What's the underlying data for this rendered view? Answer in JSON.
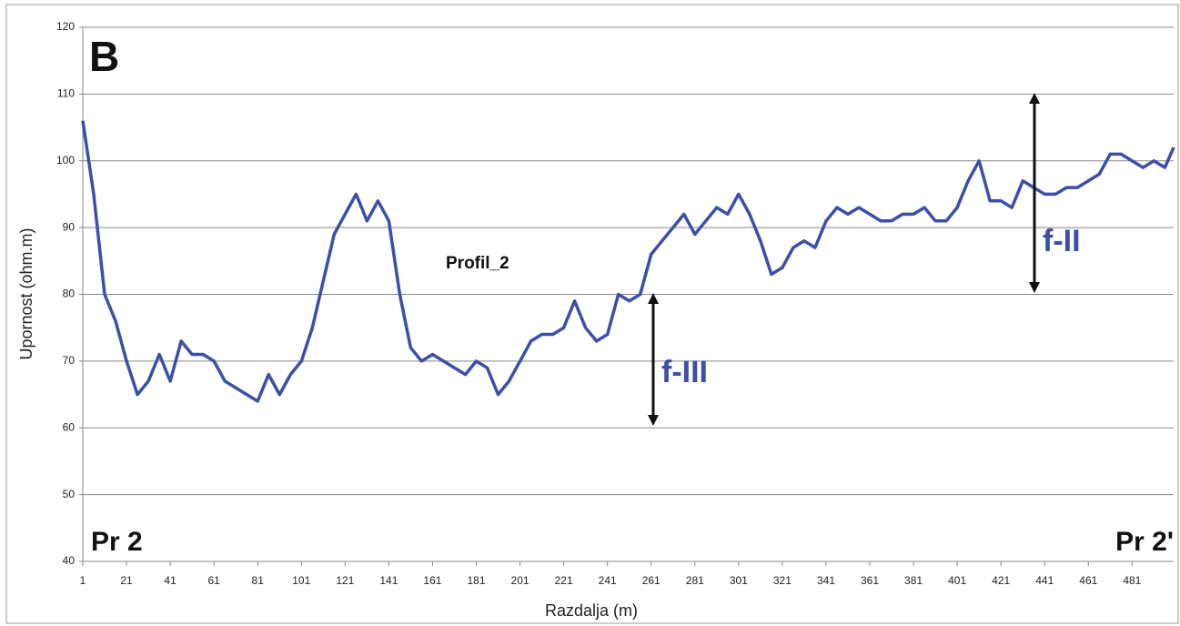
{
  "chart_data": {
    "type": "line",
    "x_label": "Razdalja (m)",
    "y_label": "Upornost (ohm.m)",
    "panel_label": "B",
    "start_label": "Pr 2",
    "end_label": "Pr 2'",
    "annotations": [
      "Profil_2",
      "f-III",
      "f-II"
    ],
    "x": [
      1,
      6,
      11,
      16,
      21,
      26,
      31,
      36,
      41,
      46,
      51,
      56,
      61,
      66,
      71,
      76,
      81,
      86,
      91,
      96,
      101,
      106,
      111,
      116,
      121,
      126,
      131,
      136,
      141,
      146,
      151,
      156,
      161,
      166,
      171,
      176,
      181,
      186,
      191,
      196,
      201,
      206,
      211,
      216,
      221,
      226,
      231,
      236,
      241,
      246,
      251,
      256,
      261,
      266,
      271,
      276,
      281,
      286,
      291,
      296,
      301,
      306,
      311,
      316,
      321,
      326,
      331,
      336,
      341,
      346,
      351,
      356,
      361,
      366,
      371,
      376,
      381,
      386,
      391,
      396,
      401,
      406,
      411,
      416,
      421,
      426,
      431,
      436,
      441,
      446,
      451,
      456,
      461,
      466,
      471,
      476,
      481,
      486,
      491,
      496,
      500
    ],
    "values": [
      106,
      95,
      80,
      76,
      70,
      65,
      67,
      71,
      67,
      73,
      71,
      71,
      70,
      67,
      66,
      65,
      64,
      68,
      65,
      68,
      70,
      75,
      82,
      89,
      92,
      95,
      91,
      94,
      91,
      80,
      72,
      70,
      71,
      70,
      69,
      68,
      70,
      69,
      65,
      67,
      70,
      73,
      74,
      74,
      75,
      79,
      75,
      73,
      74,
      80,
      79,
      80,
      86,
      88,
      90,
      92,
      89,
      91,
      93,
      92,
      95,
      92,
      88,
      83,
      84,
      87,
      88,
      87,
      91,
      93,
      92,
      93,
      92,
      91,
      91,
      92,
      92,
      93,
      91,
      91,
      93,
      97,
      100,
      94,
      94,
      93,
      97,
      96,
      95,
      95,
      96,
      96,
      97,
      98,
      101,
      101,
      100,
      99,
      100,
      99,
      102
    ],
    "color": "#3c4fa8",
    "xlim": [
      1,
      500
    ],
    "ylim": [
      40,
      120
    ],
    "xticks": [
      1,
      21,
      41,
      61,
      81,
      101,
      121,
      141,
      161,
      181,
      201,
      221,
      241,
      261,
      281,
      301,
      321,
      341,
      361,
      381,
      401,
      421,
      441,
      461,
      481
    ],
    "yticks": [
      40,
      50,
      60,
      70,
      80,
      90,
      100,
      110,
      120
    ],
    "grid": true
  }
}
